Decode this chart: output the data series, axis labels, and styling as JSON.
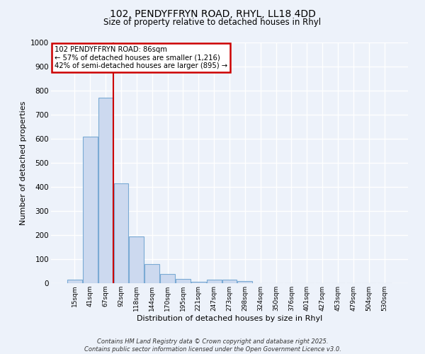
{
  "title1": "102, PENDYFFRYN ROAD, RHYL, LL18 4DD",
  "title2": "Size of property relative to detached houses in Rhyl",
  "xlabel": "Distribution of detached houses by size in Rhyl",
  "ylabel": "Number of detached properties",
  "bin_labels": [
    "15sqm",
    "41sqm",
    "67sqm",
    "92sqm",
    "118sqm",
    "144sqm",
    "170sqm",
    "195sqm",
    "221sqm",
    "247sqm",
    "273sqm",
    "298sqm",
    "324sqm",
    "350sqm",
    "376sqm",
    "401sqm",
    "427sqm",
    "453sqm",
    "479sqm",
    "504sqm",
    "530sqm"
  ],
  "bar_values": [
    15,
    610,
    770,
    415,
    195,
    80,
    38,
    18,
    5,
    15,
    15,
    8,
    0,
    0,
    0,
    0,
    0,
    0,
    0,
    0,
    0
  ],
  "bar_color": "#ccd9ef",
  "bar_edgecolor": "#7aaad4",
  "vline_color": "#cc0000",
  "vline_pos": 2.5,
  "annotation_line1": "102 PENDYFFRYN ROAD: 86sqm",
  "annotation_line2": "← 57% of detached houses are smaller (1,216)",
  "annotation_line3": "42% of semi-detached houses are larger (895) →",
  "annotation_box_facecolor": "#ffffff",
  "annotation_box_edgecolor": "#cc0000",
  "ylim": [
    0,
    1000
  ],
  "yticks": [
    0,
    100,
    200,
    300,
    400,
    500,
    600,
    700,
    800,
    900,
    1000
  ],
  "footer_line1": "Contains HM Land Registry data © Crown copyright and database right 2025.",
  "footer_line2": "Contains public sector information licensed under the Open Government Licence v3.0.",
  "bg_color": "#edf2fa",
  "grid_color": "#ffffff"
}
